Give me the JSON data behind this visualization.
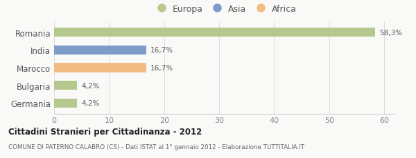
{
  "categories": [
    "Romania",
    "India",
    "Marocco",
    "Bulgaria",
    "Germania"
  ],
  "values": [
    58.3,
    16.7,
    16.7,
    4.2,
    4.2
  ],
  "labels": [
    "58,3%",
    "16,7%",
    "16,7%",
    "4,2%",
    "4,2%"
  ],
  "colors": [
    "#b5c98e",
    "#7b9dc7",
    "#f2bc85",
    "#b5c98e",
    "#b5c98e"
  ],
  "legend": [
    {
      "label": "Europa",
      "color": "#b5c98e"
    },
    {
      "label": "Asia",
      "color": "#7b9dc7"
    },
    {
      "label": "Africa",
      "color": "#f2bc85"
    }
  ],
  "xlim": [
    0,
    62
  ],
  "xticks": [
    0,
    10,
    20,
    30,
    40,
    50,
    60
  ],
  "title": "Cittadini Stranieri per Cittadinanza - 2012",
  "subtitle": "COMUNE DI PATERNO CALABRO (CS) - Dati ISTAT al 1° gennaio 2012 - Elaborazione TUTTITALIA.IT",
  "bg_color": "#f9f9f7",
  "bar_height": 0.52
}
